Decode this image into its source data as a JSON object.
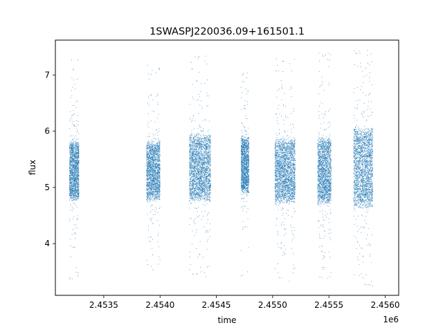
{
  "chart_data": {
    "type": "scatter",
    "title": "1SWASPJ220036.09+161501.1",
    "xlabel": "time",
    "ylabel": "flux",
    "x_offset_label": "1e6",
    "xlim": [
      2453070,
      2456120
    ],
    "ylim": [
      3.08,
      7.62
    ],
    "x_ticks": [
      2453500,
      2454000,
      2454500,
      2455000,
      2455500,
      2456000
    ],
    "x_tick_labels": [
      "2.4535",
      "2.4540",
      "2.4545",
      "2.4550",
      "2.4555",
      "2.4560"
    ],
    "y_ticks": [
      4,
      5,
      6,
      7
    ],
    "y_tick_labels": [
      "4",
      "5",
      "6",
      "7"
    ],
    "grid": false,
    "marker_color": "#1f77b4",
    "clusters": [
      {
        "x_start": 2453195,
        "x_end": 2453280,
        "flux_center": 5.3,
        "core_low": 4.85,
        "core_high": 5.95,
        "min": 3.35,
        "max": 7.4
      },
      {
        "x_start": 2453880,
        "x_end": 2454000,
        "flux_center": 5.3,
        "core_low": 4.8,
        "core_high": 5.9,
        "min": 3.5,
        "max": 7.25
      },
      {
        "x_start": 2454260,
        "x_end": 2454450,
        "flux_center": 5.35,
        "core_low": 4.7,
        "core_high": 5.95,
        "min": 3.4,
        "max": 7.35
      },
      {
        "x_start": 2454720,
        "x_end": 2454790,
        "flux_center": 5.4,
        "core_low": 4.85,
        "core_high": 5.9,
        "min": 3.3,
        "max": 7.05
      },
      {
        "x_start": 2455020,
        "x_end": 2455200,
        "flux_center": 5.3,
        "core_low": 4.75,
        "core_high": 5.95,
        "min": 3.3,
        "max": 7.3
      },
      {
        "x_start": 2455400,
        "x_end": 2455520,
        "flux_center": 5.3,
        "core_low": 4.7,
        "core_high": 5.95,
        "min": 3.3,
        "max": 7.4
      },
      {
        "x_start": 2455720,
        "x_end": 2455890,
        "flux_center": 5.35,
        "core_low": 4.6,
        "core_high": 6.1,
        "min": 3.25,
        "max": 7.45
      }
    ]
  }
}
